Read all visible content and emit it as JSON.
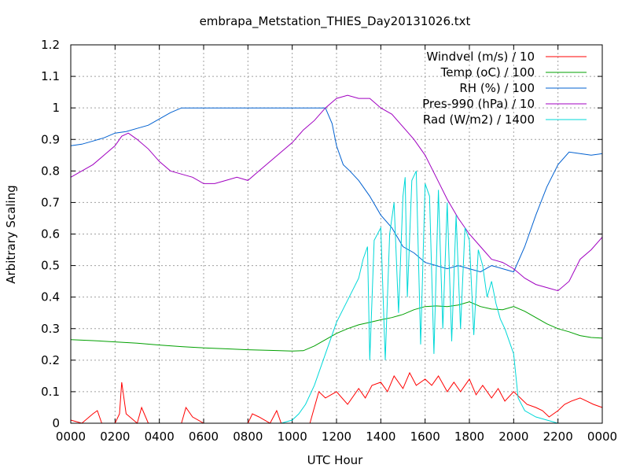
{
  "chart_data": {
    "type": "line",
    "title": "embrapa_Metstation_THIES_Day20131026.txt",
    "xlabel": "UTC Hour",
    "ylabel": "Arbitrary Scaling",
    "xlim": [
      0,
      24
    ],
    "ylim": [
      0,
      1.2
    ],
    "x_tick_values": [
      0,
      2,
      4,
      6,
      8,
      10,
      12,
      14,
      16,
      18,
      20,
      22,
      24
    ],
    "x_tick_labels": [
      "0000",
      "0200",
      "0400",
      "0600",
      "0800",
      "1000",
      "1200",
      "1400",
      "1600",
      "1800",
      "2000",
      "2200",
      "0000"
    ],
    "y_tick_values": [
      0,
      0.1,
      0.2,
      0.3,
      0.4,
      0.5,
      0.6,
      0.7,
      0.8,
      0.9,
      1,
      1.1,
      1.2
    ],
    "y_tick_labels": [
      "0",
      "0.1",
      "0.2",
      "0.3",
      "0.4",
      "0.5",
      "0.6",
      "0.7",
      "0.8",
      "0.9",
      "1",
      "1.1",
      "1.2"
    ],
    "grid": true,
    "legend_position": "top-right",
    "series": [
      {
        "name": "Windvel (m/s) / 10",
        "color": "#ff0000",
        "x": [
          0,
          0.5,
          1,
          1.2,
          1.4,
          2,
          2.2,
          2.3,
          2.5,
          3,
          3.2,
          3.5,
          4,
          4.5,
          5,
          5.2,
          5.5,
          6,
          6.5,
          7,
          7.5,
          8,
          8.2,
          8.5,
          9,
          9.3,
          9.5,
          10,
          10.5,
          10.8,
          11,
          11.2,
          11.5,
          12,
          12.5,
          13,
          13.3,
          13.6,
          14,
          14.3,
          14.6,
          15,
          15.3,
          15.6,
          16,
          16.3,
          16.6,
          17,
          17.3,
          17.6,
          18,
          18.3,
          18.6,
          19,
          19.3,
          19.6,
          20,
          20.3,
          20.6,
          21,
          21.3,
          21.6,
          22,
          22.3,
          22.6,
          23,
          23.3,
          23.6,
          24
        ],
        "y": [
          0.01,
          0.0,
          0.03,
          0.04,
          0.0,
          0.0,
          0.03,
          0.13,
          0.03,
          0.0,
          0.05,
          0.0,
          0.0,
          0.0,
          0.0,
          0.05,
          0.02,
          0.0,
          0.0,
          0.0,
          0.0,
          0.0,
          0.03,
          0.02,
          0.0,
          0.04,
          0.0,
          0.0,
          0.0,
          0.0,
          0.05,
          0.1,
          0.08,
          0.1,
          0.06,
          0.11,
          0.08,
          0.12,
          0.13,
          0.1,
          0.15,
          0.11,
          0.16,
          0.12,
          0.14,
          0.12,
          0.15,
          0.1,
          0.13,
          0.1,
          0.14,
          0.09,
          0.12,
          0.08,
          0.11,
          0.07,
          0.1,
          0.08,
          0.06,
          0.05,
          0.04,
          0.02,
          0.04,
          0.06,
          0.07,
          0.08,
          0.07,
          0.06,
          0.05
        ]
      },
      {
        "name": "Temp (oC) / 100",
        "color": "#00a000",
        "x": [
          0,
          1,
          2,
          3,
          4,
          5,
          6,
          7,
          8,
          9,
          10,
          10.5,
          11,
          11.5,
          12,
          12.5,
          13,
          13.5,
          14,
          14.5,
          15,
          15.5,
          16,
          16.5,
          17,
          17.5,
          18,
          18.5,
          19,
          19.5,
          20,
          20.5,
          21,
          21.5,
          22,
          22.5,
          23,
          23.5,
          24
        ],
        "y": [
          0.265,
          0.262,
          0.258,
          0.254,
          0.248,
          0.243,
          0.239,
          0.236,
          0.233,
          0.231,
          0.229,
          0.23,
          0.245,
          0.265,
          0.285,
          0.3,
          0.312,
          0.32,
          0.328,
          0.335,
          0.345,
          0.36,
          0.37,
          0.372,
          0.37,
          0.375,
          0.385,
          0.37,
          0.362,
          0.36,
          0.37,
          0.355,
          0.335,
          0.315,
          0.3,
          0.29,
          0.278,
          0.272,
          0.27
        ]
      },
      {
        "name": "RH (%) / 100",
        "color": "#0060d0",
        "x": [
          0,
          0.5,
          1,
          1.5,
          2,
          2.5,
          3,
          3.5,
          4,
          4.5,
          5,
          5.5,
          6,
          7,
          8,
          9,
          10,
          11,
          11.5,
          11.8,
          12,
          12.3,
          12.6,
          13,
          13.5,
          14,
          14.5,
          15,
          15.5,
          16,
          16.5,
          17,
          17.5,
          18,
          18.5,
          19,
          19.5,
          20,
          20.5,
          21,
          21.5,
          22,
          22.5,
          23,
          23.5,
          24
        ],
        "y": [
          0.88,
          0.885,
          0.895,
          0.905,
          0.92,
          0.925,
          0.935,
          0.945,
          0.965,
          0.985,
          1.0,
          1.0,
          1.0,
          1.0,
          1.0,
          1.0,
          1.0,
          1.0,
          1.0,
          0.95,
          0.88,
          0.82,
          0.8,
          0.77,
          0.72,
          0.66,
          0.62,
          0.56,
          0.54,
          0.51,
          0.5,
          0.49,
          0.5,
          0.49,
          0.48,
          0.5,
          0.49,
          0.48,
          0.56,
          0.66,
          0.75,
          0.82,
          0.86,
          0.855,
          0.85,
          0.855
        ]
      },
      {
        "name": "Pres-990 (hPa) / 10",
        "color": "#a000c0",
        "x": [
          0,
          0.5,
          1,
          1.5,
          2,
          2.3,
          2.6,
          3,
          3.5,
          4,
          4.5,
          5,
          5.5,
          6,
          6.5,
          7,
          7.5,
          8,
          8.5,
          9,
          9.5,
          10,
          10.5,
          11,
          11.5,
          12,
          12.5,
          13,
          13.5,
          14,
          14.5,
          15,
          15.5,
          16,
          16.5,
          17,
          17.5,
          18,
          18.5,
          19,
          19.5,
          20,
          20.5,
          21,
          21.5,
          22,
          22.5,
          23,
          23.5,
          24
        ],
        "y": [
          0.78,
          0.8,
          0.82,
          0.85,
          0.88,
          0.91,
          0.92,
          0.9,
          0.87,
          0.83,
          0.8,
          0.79,
          0.78,
          0.76,
          0.76,
          0.77,
          0.78,
          0.77,
          0.8,
          0.83,
          0.86,
          0.89,
          0.93,
          0.96,
          1.0,
          1.03,
          1.04,
          1.03,
          1.03,
          1.0,
          0.98,
          0.94,
          0.9,
          0.85,
          0.78,
          0.71,
          0.65,
          0.6,
          0.56,
          0.52,
          0.51,
          0.49,
          0.46,
          0.44,
          0.43,
          0.42,
          0.45,
          0.52,
          0.55,
          0.59
        ]
      },
      {
        "name": "Rad (W/m2) / 1400",
        "color": "#00d8d8",
        "x": [
          0,
          2,
          4,
          6,
          8,
          9.5,
          10,
          10.3,
          10.6,
          11,
          11.5,
          12,
          12.5,
          13,
          13.2,
          13.4,
          13.5,
          13.7,
          14,
          14.2,
          14.4,
          14.6,
          14.8,
          15,
          15.1,
          15.2,
          15.4,
          15.6,
          15.8,
          16,
          16.2,
          16.4,
          16.6,
          16.8,
          17,
          17.2,
          17.4,
          17.6,
          17.8,
          18,
          18.2,
          18.4,
          18.6,
          18.8,
          19,
          19.2,
          19.4,
          19.6,
          19.8,
          20,
          20.2,
          20.5,
          21,
          22,
          23,
          24
        ],
        "y": [
          0.0,
          0.0,
          0.0,
          0.0,
          0.0,
          0.0,
          0.01,
          0.03,
          0.06,
          0.12,
          0.22,
          0.32,
          0.39,
          0.46,
          0.52,
          0.56,
          0.2,
          0.58,
          0.62,
          0.2,
          0.6,
          0.7,
          0.35,
          0.72,
          0.78,
          0.4,
          0.77,
          0.8,
          0.25,
          0.76,
          0.72,
          0.22,
          0.74,
          0.3,
          0.7,
          0.26,
          0.66,
          0.3,
          0.62,
          0.58,
          0.28,
          0.55,
          0.5,
          0.4,
          0.45,
          0.38,
          0.33,
          0.3,
          0.26,
          0.22,
          0.08,
          0.04,
          0.02,
          0.0,
          0.0,
          0.0
        ]
      }
    ]
  }
}
